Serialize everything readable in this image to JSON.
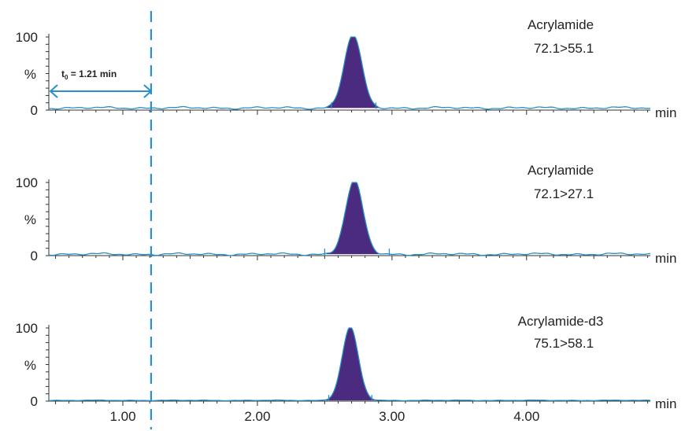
{
  "chart_data": [
    {
      "type": "line",
      "title": "Acrylamide",
      "subtitle": "72.1>55.1",
      "xlabel": "min",
      "ylabel": "%",
      "ylim": [
        0,
        100
      ],
      "yticks": [
        "100",
        "0"
      ],
      "xlim": [
        0.45,
        4.92
      ],
      "peak": {
        "rt": 2.71,
        "height": 100,
        "width": 0.065,
        "start": 2.55,
        "end": 2.88
      },
      "baseline": 3,
      "annotation": {
        "label": "t",
        "sub": "0",
        "text": " = 1.21 min",
        "from": 0.45,
        "to": 1.21
      }
    },
    {
      "type": "line",
      "title": "Acrylamide",
      "subtitle": "72.1>27.1",
      "xlabel": "min",
      "ylabel": "%",
      "ylim": [
        0,
        100
      ],
      "yticks": [
        "100",
        "0"
      ],
      "xlim": [
        0.45,
        4.92
      ],
      "peak": {
        "rt": 2.72,
        "height": 100,
        "width": 0.065,
        "start": 2.5,
        "end": 2.98
      },
      "baseline": 2
    },
    {
      "type": "line",
      "title": "Acrylamide-d3",
      "subtitle": "75.1>58.1",
      "xlabel": "min",
      "ylabel": "%",
      "ylim": [
        0,
        100
      ],
      "yticks": [
        "100",
        "0"
      ],
      "xlim": [
        0.45,
        4.92
      ],
      "xticks": [
        "1.00",
        "2.00",
        "3.00",
        "4.00"
      ],
      "peak": {
        "rt": 2.69,
        "height": 100,
        "width": 0.06,
        "start": 2.53,
        "end": 2.85
      },
      "baseline": 1
    }
  ],
  "t0_marker": 1.21,
  "colors": {
    "trace": "#2b8fc9",
    "peak_fill": "#4b2b7f",
    "axis": "#333333"
  }
}
